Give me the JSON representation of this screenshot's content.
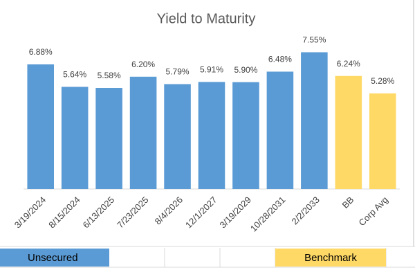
{
  "chart_data": {
    "type": "bar",
    "title": "Yield to Maturity",
    "categories": [
      "3/19/2024",
      "8/15/2024",
      "6/13/2025",
      "7/23/2025",
      "8/4/2026",
      "12/1/2027",
      "3/19/2029",
      "10/28/2031",
      "2/2/2033",
      "BB",
      "Corp Avg"
    ],
    "values": [
      6.88,
      5.64,
      5.58,
      6.2,
      5.79,
      5.91,
      5.9,
      6.48,
      7.55,
      6.24,
      5.28
    ],
    "value_labels": [
      "6.88%",
      "5.64%",
      "5.58%",
      "6.20%",
      "5.79%",
      "5.91%",
      "5.90%",
      "6.48%",
      "7.55%",
      "6.24%",
      "5.28%"
    ],
    "colors": [
      "#5b9bd5",
      "#5b9bd5",
      "#5b9bd5",
      "#5b9bd5",
      "#5b9bd5",
      "#5b9bd5",
      "#5b9bd5",
      "#5b9bd5",
      "#5b9bd5",
      "#ffd966",
      "#ffd966"
    ],
    "ylim": [
      0,
      8.6
    ]
  },
  "cells": [
    "Unsecured",
    "Benchmark"
  ]
}
